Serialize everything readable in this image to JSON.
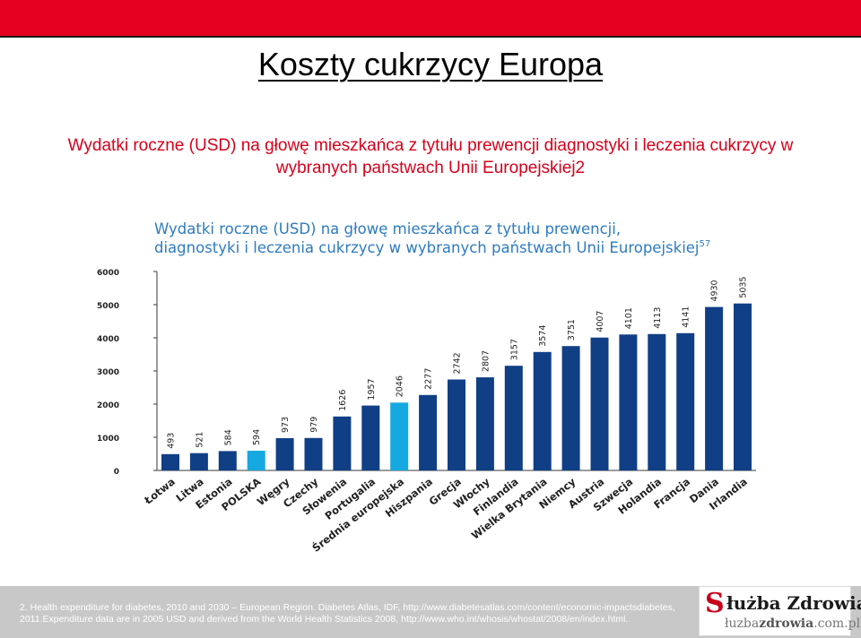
{
  "slide": {
    "title": "Koszty cukrzycy Europa",
    "subtitle": "Wydatki roczne (USD) na głowę mieszkańca z tytułu prewencji diagnostyki i leczenia cukrzycy w wybranych państwach Unii Europejskiej2",
    "footnote_line1": "2. Health expenditure for diabetes, 2010 and 2030 – European Region. Diabetes Atlas, IDF, http://www.diabetesatlas.com/content/economic-impactsdiabetes,",
    "footnote_line2": "2011.Expenditure data are in 2005 USD and derived from the World Health Statistics 2008, http://www.who.int/whosis/whostat/2008/en/index.html.",
    "logo_top_initial": "S",
    "logo_top_rest": "łużba Zdrowia",
    "logo_bottom_lead": "łuzba",
    "logo_bottom_bold": "zdrowia",
    "logo_bottom_tail": ".com.pl",
    "colors": {
      "bar_topbar": "#e6001f",
      "subtitle": "#d6001c",
      "chart_title": "#2e7bbf",
      "bar_main": "#103f86",
      "bar_highlight": "#16a9e1",
      "axis": "#3a3a3a"
    }
  },
  "chart_data": {
    "type": "bar",
    "title_line1": "Wydatki roczne (USD) na głowę mieszkańca z tytułu prewencji,",
    "title_line2": "diagnostyki i leczenia cukrzycy w wybranych państwach Unii Europejskiej",
    "title_footnote_mark": "57",
    "categories": [
      "Łotwa",
      "Litwa",
      "Estonia",
      "POLSKA",
      "Węgry",
      "Czechy",
      "Słowenia",
      "Portugalia",
      "Średnia europejska",
      "Hiszpania",
      "Grecja",
      "Włochy",
      "Finlandia",
      "Wielka Brytania",
      "Niemcy",
      "Austria",
      "Szwecja",
      "Holandia",
      "Francja",
      "Dania",
      "Irlandia"
    ],
    "values": [
      493,
      521,
      584,
      594,
      973,
      979,
      1626,
      1957,
      2046,
      2277,
      2742,
      2807,
      3157,
      3574,
      3751,
      4007,
      4101,
      4113,
      4141,
      4930,
      5035
    ],
    "highlight": [
      "POLSKA",
      "Średnia europejska"
    ],
    "yticks": [
      0,
      1000,
      2000,
      3000,
      4000,
      5000,
      6000
    ],
    "ylim": [
      0,
      6000
    ],
    "grid": false,
    "xlabel": "",
    "ylabel": ""
  }
}
